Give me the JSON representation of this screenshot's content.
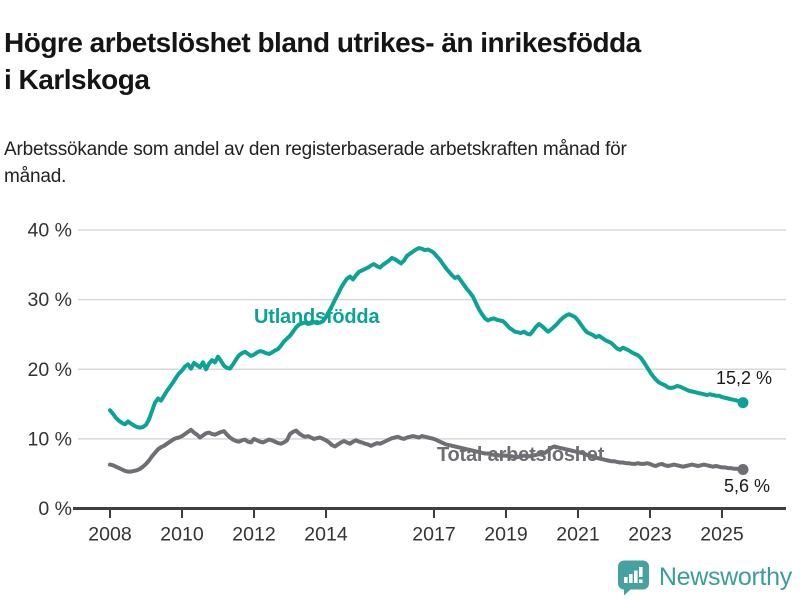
{
  "header": {
    "title": "Högre arbetslöshet bland utrikes- än inrikesfödda i Karlskoga",
    "subtitle": "Arbetssökande som andel av den registerbaserade arbetskraften månad för månad."
  },
  "chart_data": {
    "type": "line",
    "title": "Högre arbetslöshet bland utrikes- än inrikesfödda i Karlskoga",
    "x_unit": "month",
    "x_start": "2008-01",
    "x_end": "2025-08",
    "x_tick_years": [
      2008,
      2010,
      2012,
      2014,
      2017,
      2019,
      2021,
      2023,
      2025
    ],
    "y_ticks": [
      {
        "value": 0,
        "label": "0 %"
      },
      {
        "value": 10,
        "label": "10 %"
      },
      {
        "value": 20,
        "label": "20 %"
      },
      {
        "value": 30,
        "label": "30 %"
      },
      {
        "value": 40,
        "label": "40 %"
      }
    ],
    "ylim": [
      0,
      42
    ],
    "grid": "horizontal",
    "legend": "inline-labels",
    "colors": {
      "grid": "#D8D8D8",
      "axis": "#3F3F3F",
      "axis_text": "#333333"
    },
    "series": [
      {
        "name": "utlandsfodda",
        "label": "Utlandsfödda",
        "color": "#0AA396",
        "end_label": "15,2 %",
        "end_value": 15.2,
        "values": [
          14.1,
          13.6,
          13.0,
          12.6,
          12.3,
          12.1,
          12.5,
          12.2,
          11.9,
          11.7,
          11.6,
          11.7,
          12.0,
          12.8,
          14.0,
          15.2,
          15.8,
          15.5,
          16.2,
          16.9,
          17.5,
          18.1,
          18.8,
          19.4,
          19.8,
          20.4,
          20.7,
          20.1,
          20.9,
          20.6,
          20.3,
          21.0,
          20.0,
          20.8,
          21.3,
          21.0,
          21.8,
          21.2,
          20.5,
          20.2,
          20.1,
          20.7,
          21.4,
          22.0,
          22.3,
          22.5,
          22.2,
          21.9,
          22.1,
          22.4,
          22.6,
          22.5,
          22.3,
          22.2,
          22.4,
          22.7,
          22.9,
          23.4,
          24.0,
          24.4,
          24.8,
          25.4,
          26.0,
          26.4,
          26.6,
          26.7,
          26.5,
          26.6,
          26.8,
          26.6,
          26.7,
          26.9,
          27.5,
          28.3,
          29.1,
          30.0,
          30.8,
          31.7,
          32.4,
          33.0,
          33.3,
          32.9,
          33.5,
          34.0,
          34.2,
          34.4,
          34.6,
          34.9,
          35.1,
          34.8,
          34.6,
          35.0,
          35.3,
          35.6,
          36.0,
          35.8,
          35.5,
          35.2,
          35.6,
          36.3,
          36.6,
          36.9,
          37.2,
          37.4,
          37.3,
          37.1,
          37.2,
          37.0,
          36.7,
          36.2,
          35.7,
          35.1,
          34.5,
          34.0,
          33.5,
          33.1,
          33.3,
          32.7,
          32.1,
          31.5,
          31.0,
          30.4,
          29.5,
          28.6,
          27.9,
          27.3,
          27.0,
          27.2,
          27.3,
          27.1,
          27.0,
          26.9,
          26.5,
          26.0,
          25.7,
          25.4,
          25.3,
          25.2,
          25.4,
          25.1,
          25.0,
          25.5,
          26.1,
          26.5,
          26.2,
          25.8,
          25.4,
          25.7,
          26.1,
          26.5,
          27.0,
          27.4,
          27.7,
          27.9,
          27.7,
          27.5,
          27.0,
          26.4,
          25.8,
          25.3,
          25.1,
          24.9,
          24.6,
          24.8,
          24.5,
          24.2,
          24.0,
          23.8,
          23.4,
          23.0,
          22.8,
          23.1,
          22.9,
          22.7,
          22.4,
          22.2,
          22.0,
          21.6,
          21.0,
          20.3,
          19.6,
          19.0,
          18.5,
          18.1,
          17.9,
          17.7,
          17.4,
          17.3,
          17.4,
          17.6,
          17.5,
          17.3,
          17.1,
          16.9,
          16.8,
          16.7,
          16.6,
          16.5,
          16.4,
          16.3,
          16.4,
          16.3,
          16.2,
          16.2,
          16.0,
          15.9,
          15.8,
          15.7,
          15.6,
          15.5,
          15.3,
          15.2
        ]
      },
      {
        "name": "total",
        "label": "Total arbetslöshet",
        "color": "#6E6E73",
        "end_label": "5,6 %",
        "end_value": 5.6,
        "values": [
          6.3,
          6.2,
          6.0,
          5.8,
          5.6,
          5.4,
          5.3,
          5.3,
          5.4,
          5.5,
          5.7,
          6.0,
          6.4,
          6.9,
          7.5,
          8.0,
          8.5,
          8.8,
          9.0,
          9.3,
          9.6,
          9.9,
          10.1,
          10.2,
          10.4,
          10.7,
          11.0,
          11.3,
          10.9,
          10.6,
          10.2,
          10.5,
          10.8,
          10.9,
          10.7,
          10.6,
          10.8,
          11.0,
          11.1,
          10.6,
          10.2,
          9.9,
          9.7,
          9.6,
          9.8,
          9.9,
          9.6,
          9.5,
          10.0,
          9.8,
          9.6,
          9.5,
          9.7,
          9.9,
          9.8,
          9.6,
          9.4,
          9.3,
          9.5,
          9.8,
          10.7,
          11.0,
          11.2,
          10.8,
          10.5,
          10.3,
          10.4,
          10.2,
          10.0,
          10.1,
          10.2,
          10.0,
          9.8,
          9.5,
          9.1,
          8.9,
          9.2,
          9.5,
          9.7,
          9.5,
          9.3,
          9.6,
          9.8,
          9.6,
          9.5,
          9.3,
          9.2,
          9.0,
          9.2,
          9.4,
          9.3,
          9.5,
          9.7,
          9.9,
          10.1,
          10.2,
          10.3,
          10.1,
          10.0,
          10.2,
          10.3,
          10.4,
          10.3,
          10.2,
          10.4,
          10.3,
          10.2,
          10.1,
          10.0,
          9.8,
          9.6,
          9.4,
          9.2,
          9.1,
          9.0,
          8.9,
          8.8,
          8.7,
          8.6,
          8.5,
          8.4,
          8.3,
          8.2,
          8.1,
          8.0,
          7.9,
          7.9,
          7.8,
          7.7,
          7.7,
          7.6,
          7.6,
          7.6,
          7.5,
          7.5,
          7.4,
          7.4,
          7.5,
          7.6,
          7.5,
          7.5,
          7.6,
          7.7,
          7.8,
          7.9,
          8.0,
          8.3,
          8.7,
          8.9,
          8.8,
          8.7,
          8.6,
          8.5,
          8.4,
          8.3,
          8.2,
          8.1,
          8.0,
          7.9,
          7.7,
          7.6,
          7.4,
          7.3,
          7.2,
          7.1,
          7.0,
          6.9,
          6.8,
          6.8,
          6.7,
          6.6,
          6.6,
          6.5,
          6.5,
          6.4,
          6.4,
          6.5,
          6.4,
          6.4,
          6.5,
          6.4,
          6.2,
          6.1,
          6.3,
          6.4,
          6.2,
          6.1,
          6.2,
          6.3,
          6.2,
          6.1,
          6.0,
          6.1,
          6.2,
          6.3,
          6.2,
          6.1,
          6.2,
          6.3,
          6.2,
          6.1,
          6.0,
          6.1,
          6.0,
          5.9,
          5.9,
          5.8,
          5.8,
          5.7,
          5.7,
          5.6,
          5.6
        ]
      }
    ]
  },
  "footer": {
    "brand": "Newsworthy",
    "logo_icon": "bar-chart-speech-bubble-icon",
    "brand_color": "#3D9D99",
    "icon_color": "#45A29E"
  }
}
